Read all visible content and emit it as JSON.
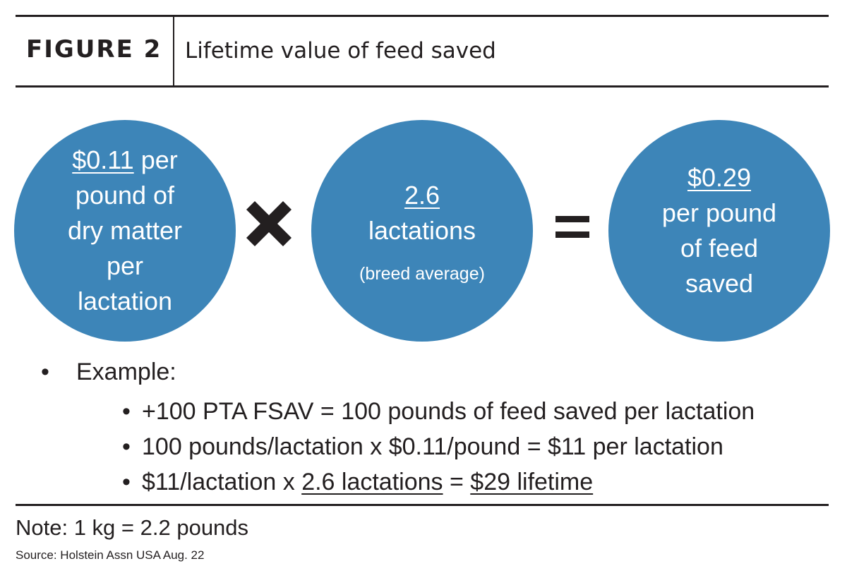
{
  "header": {
    "figure_label": "FIGURE 2",
    "title": "Lifetime value of feed saved"
  },
  "circles": [
    {
      "value": "$0.11",
      "value_suffix": " per",
      "lines": [
        "pound of",
        "dry matter",
        "per",
        "lactation"
      ]
    },
    {
      "value": "2.6",
      "lines": [
        "lactations"
      ],
      "note": "(breed average)"
    },
    {
      "value": "$0.29",
      "lines": [
        "per pound",
        "of feed",
        "saved"
      ]
    }
  ],
  "operators": {
    "multiply": "x",
    "equals": "="
  },
  "example": {
    "label": "Example:",
    "items": [
      {
        "text": "+100 PTA FSAV = 100 pounds of feed saved per lactation"
      },
      {
        "text": "100 pounds/lactation x $0.11/pound = $11 per lactation"
      },
      {
        "part1": "$11/lactation x ",
        "part2": "2.6 lactations",
        "part3": " = ",
        "part4": "$29 lifetime"
      }
    ]
  },
  "note": "Note: 1 kg = 2.2 pounds",
  "source": "Source: Holstein Assn USA Aug. 22",
  "colors": {
    "circle": "#3d85b8",
    "text": "#231f20",
    "background": "#ffffff"
  }
}
